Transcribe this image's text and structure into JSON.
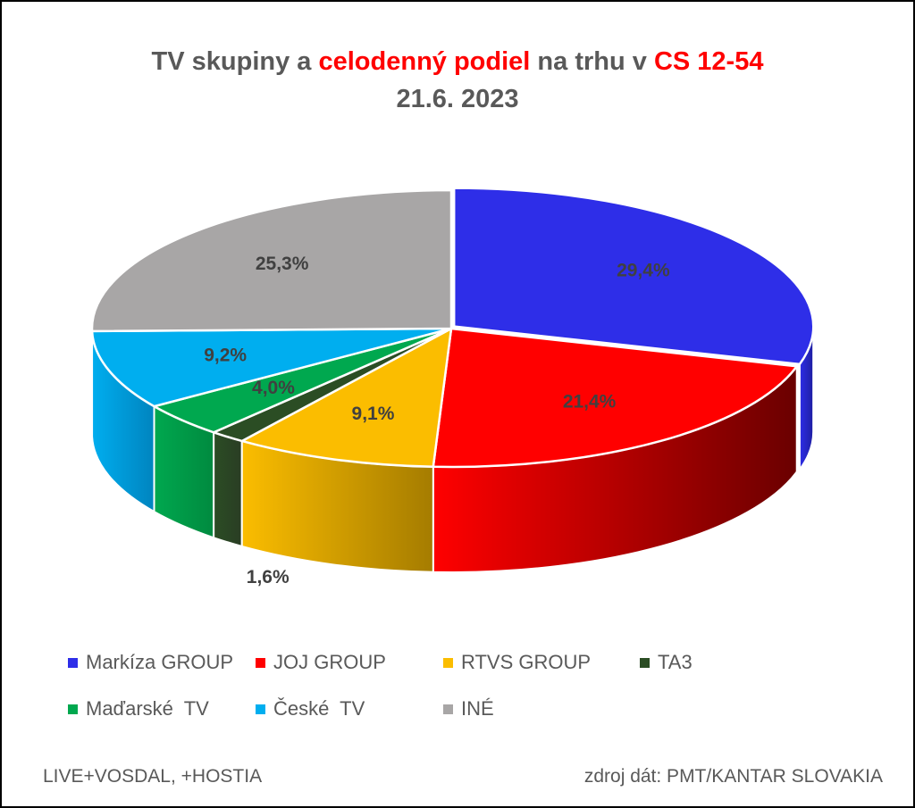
{
  "title": {
    "part1": "TV skupiny a ",
    "part2": "celodenný podiel",
    "part3": " na trhu v ",
    "part4": "CS 12-54",
    "line2": "21.6. 2023"
  },
  "chart_data": {
    "type": "pie",
    "style": "3d-exploded",
    "labels": [
      "Markíza GROUP",
      "JOJ GROUP",
      "RTVS GROUP",
      "TA3",
      "Maďarské  TV",
      "České  TV",
      "INÉ"
    ],
    "values": [
      29.4,
      21.4,
      9.1,
      1.6,
      4.0,
      9.2,
      25.3
    ],
    "value_labels": [
      "29,4%",
      "21,4%",
      "9,1%",
      "1,6%",
      "4,0%",
      "9,2%",
      "25,3%"
    ],
    "colors": [
      "#2e2ee8",
      "#ff0000",
      "#fbbd00",
      "#2b4d24",
      "#00a84f",
      "#00aeef",
      "#a8a6a6"
    ],
    "side_colors": [
      "#1e1ea0",
      "#6a0000",
      "#a57c00",
      "#2a3d24",
      "#008a3f",
      "#0084bf",
      "#8a8888"
    ],
    "legend_position": "bottom"
  },
  "legend": {
    "items": [
      {
        "label": "Markíza GROUP",
        "color": "#2e2ee8"
      },
      {
        "label": "JOJ GROUP",
        "color": "#ff0000"
      },
      {
        "label": "RTVS GROUP",
        "color": "#fbbd00"
      },
      {
        "label": "TA3",
        "color": "#2b4d24"
      },
      {
        "label": "Maďarské  TV",
        "color": "#00a84f"
      },
      {
        "label": "České  TV",
        "color": "#00aeef"
      },
      {
        "label": "INÉ",
        "color": "#a8a6a6"
      }
    ]
  },
  "footer": {
    "left": "LIVE+VOSDAL, +HOSTIA",
    "right": "zdroj dát: PMT/KANTAR SLOVAKIA"
  }
}
